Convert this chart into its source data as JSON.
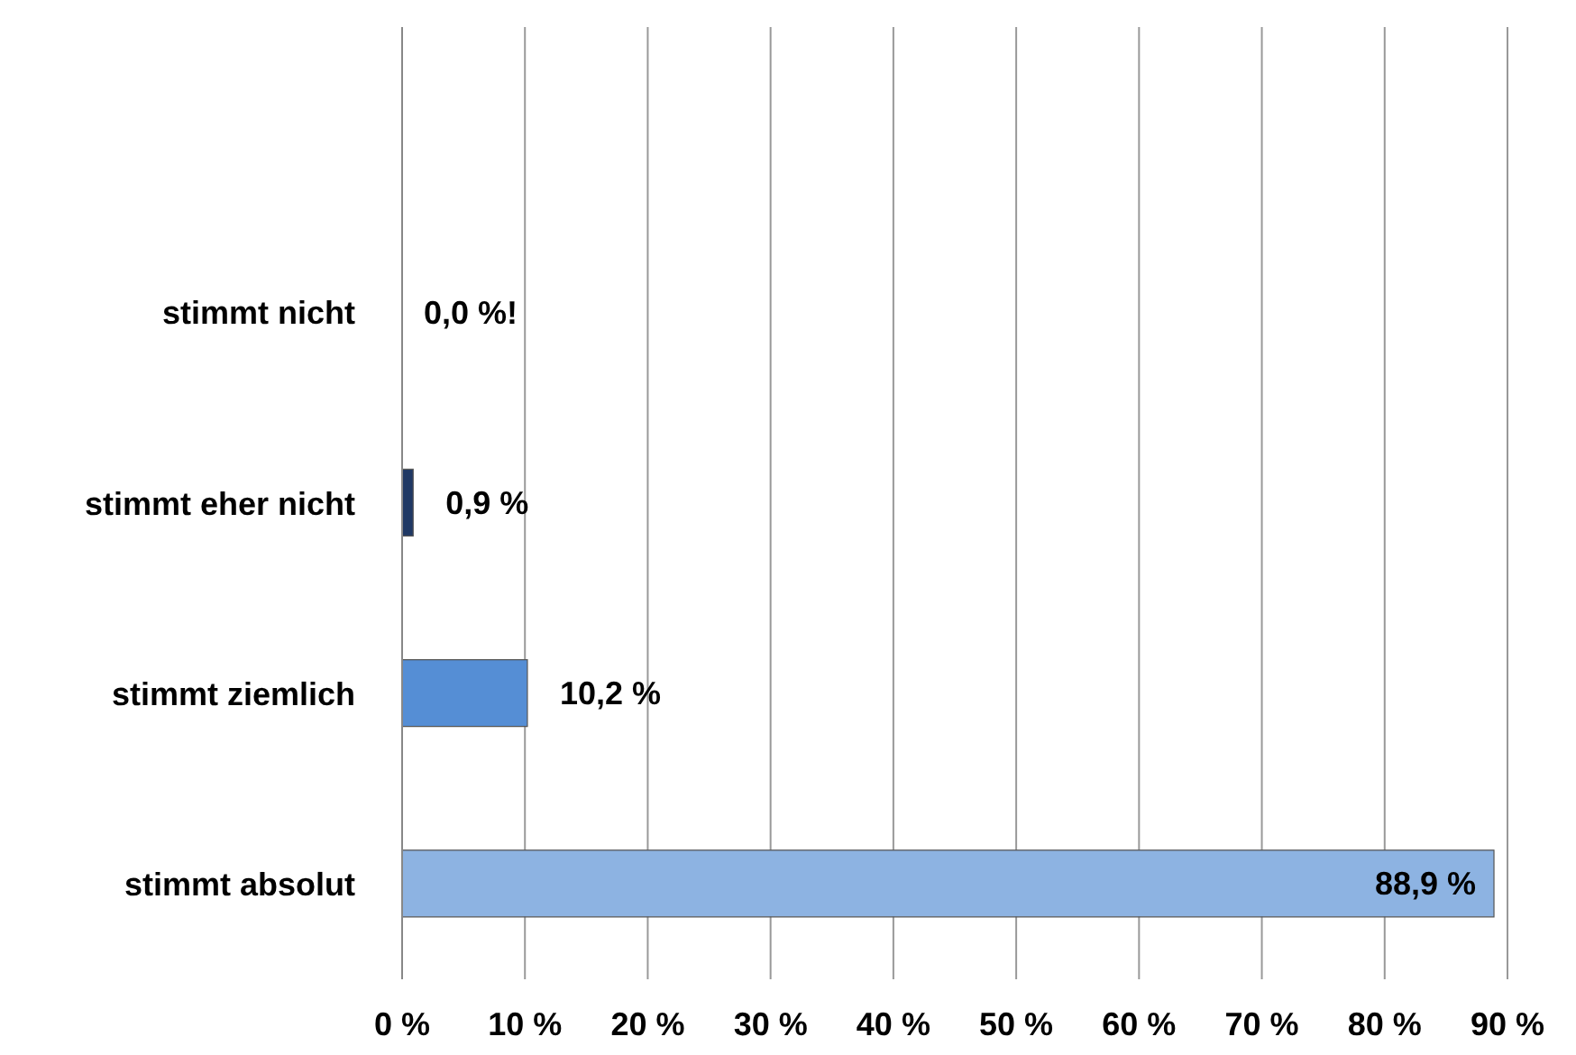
{
  "chart_data": {
    "type": "bar",
    "orientation": "horizontal",
    "categories": [
      null,
      "stimmt nicht",
      "stimmt eher nicht",
      "stimmt ziemlich",
      "stimmt absolut"
    ],
    "values": [
      null,
      0,
      0.9,
      10.2,
      88.9
    ],
    "colors": [
      "#ffffff",
      "#1f3864",
      "#1f3864",
      "#558ed5",
      "#8db3e2"
    ],
    "value_labels": [
      null,
      "0,0 %!",
      "0,9 %",
      "10,2 %",
      "88,9 %"
    ],
    "xlim": [
      0,
      90
    ],
    "xticks": [
      {
        "value": 0,
        "label": "0 %"
      },
      {
        "value": 10,
        "label": "10 %"
      },
      {
        "value": 20,
        "label": "20 %"
      },
      {
        "value": 30,
        "label": "30 %"
      },
      {
        "value": 40,
        "label": "40 %"
      },
      {
        "value": 50,
        "label": "50 %"
      },
      {
        "value": 60,
        "label": "60 %"
      },
      {
        "value": 70,
        "label": "70 %"
      },
      {
        "value": 80,
        "label": "80 %"
      },
      {
        "value": 90,
        "label": "90 %"
      }
    ],
    "grid": "x",
    "legend": false
  }
}
